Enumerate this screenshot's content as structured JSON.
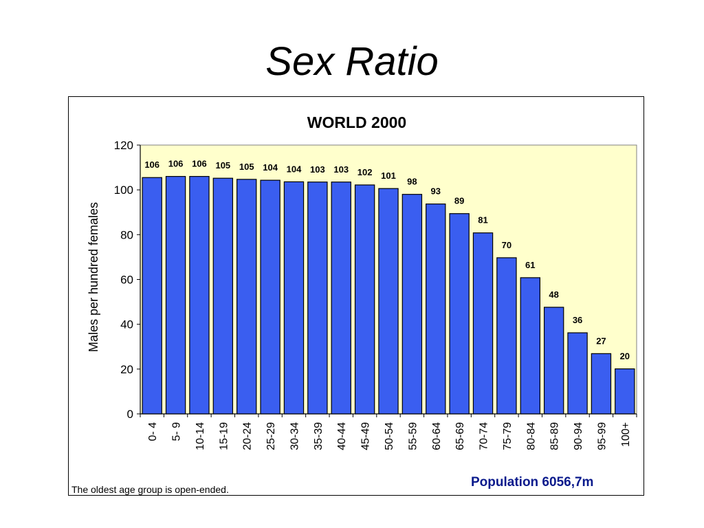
{
  "slide": {
    "title": "Sex Ratio",
    "footnote": "The oldest age group is open-ended.",
    "population": "Population 6056,7m"
  },
  "colors": {
    "bar_fill": "#3a5ef0",
    "plot_background": "#ffffcc",
    "population_text": "#0a1a8c"
  },
  "chart_data": {
    "type": "bar",
    "title": "WORLD 2000",
    "xlabel": "",
    "ylabel": "Males per hundred females",
    "ylim": [
      0,
      120
    ],
    "yticks": [
      0,
      20,
      40,
      60,
      80,
      100,
      120
    ],
    "grid": false,
    "categories": [
      "0-  4",
      "5-  9",
      "10-14",
      "15-19",
      "20-24",
      "25-29",
      "30-34",
      "35-39",
      "40-44",
      "45-49",
      "50-54",
      "55-59",
      "60-64",
      "65-69",
      "70-74",
      "75-79",
      "80-84",
      "85-89",
      "90-94",
      "95-99",
      "100+"
    ],
    "values": [
      106,
      106,
      106,
      105,
      105,
      104,
      104,
      103,
      103,
      102,
      101,
      98,
      93,
      89,
      81,
      70,
      61,
      48,
      36,
      27,
      20
    ],
    "bar_heights": [
      105.5,
      106,
      106,
      105.2,
      104.7,
      104.3,
      103.6,
      103.5,
      103.5,
      102.2,
      100.6,
      98,
      93.7,
      89.4,
      80.8,
      69.7,
      60.8,
      47.6,
      36.2,
      26.9,
      20.1
    ]
  }
}
